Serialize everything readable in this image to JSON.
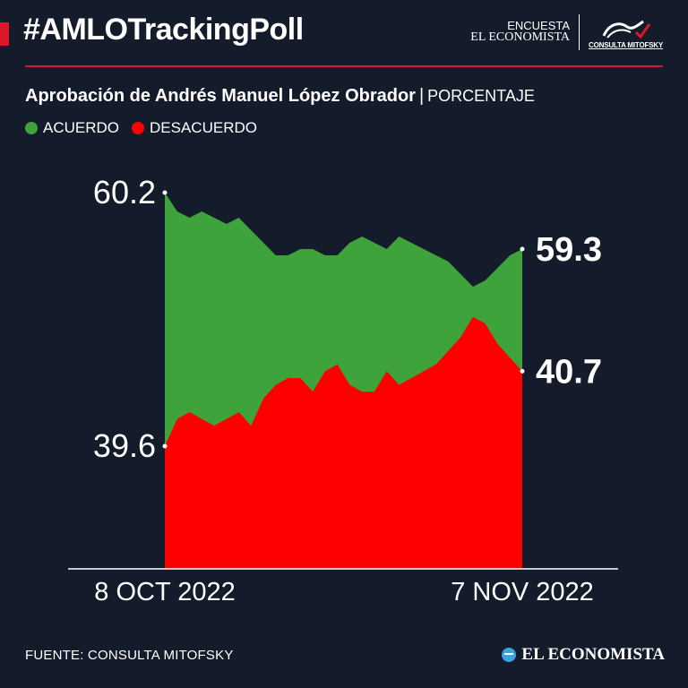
{
  "header": {
    "hashtag": "#AMLOTrackingPoll",
    "brand_line1": "ENCUESTA",
    "brand_line2": "EL ECONOMISTA",
    "partner_logo_label": "CONSULTA MITOFSKY"
  },
  "subtitle": {
    "title": "Aprobación de Andrés Manuel López Obrador",
    "separator": "|",
    "unit": "PORCENTAJE"
  },
  "colors": {
    "background": "#141c2b",
    "accent_red": "#d9182a",
    "acuerdo": "#3ea33b",
    "desacuerdo": "#ff0000",
    "axis": "#ffffff"
  },
  "chart_data": {
    "type": "area",
    "series": [
      {
        "name": "ACUERDO",
        "values": [
          60.2,
          59.9,
          59.8,
          59.9,
          59.8,
          59.7,
          59.8,
          59.6,
          59.4,
          59.2,
          59.2,
          59.3,
          59.3,
          59.2,
          59.2,
          59.4,
          59.5,
          59.4,
          59.3,
          59.5,
          59.4,
          59.3,
          59.2,
          59.1,
          58.9,
          58.7,
          58.8,
          59.0,
          59.2,
          59.3
        ]
      },
      {
        "name": "DESACUERDO",
        "values": [
          39.6,
          40.0,
          40.1,
          40.0,
          39.9,
          40.0,
          40.1,
          39.9,
          40.3,
          40.5,
          40.6,
          40.6,
          40.4,
          40.7,
          40.8,
          40.5,
          40.4,
          40.4,
          40.7,
          40.5,
          40.6,
          40.7,
          40.8,
          41.0,
          41.2,
          41.5,
          41.4,
          41.1,
          40.9,
          40.7
        ]
      }
    ],
    "start_label": "8 OCT 2022",
    "end_label": "7 NOV 2022",
    "labels": {
      "start_high": "60.2",
      "start_low": "39.6",
      "end_high": "59.3",
      "end_low": "40.7"
    }
  },
  "footer": {
    "source": "FUENTE: CONSULTA MITOFSKY",
    "logo_text": "EL ECONOMISTA"
  }
}
